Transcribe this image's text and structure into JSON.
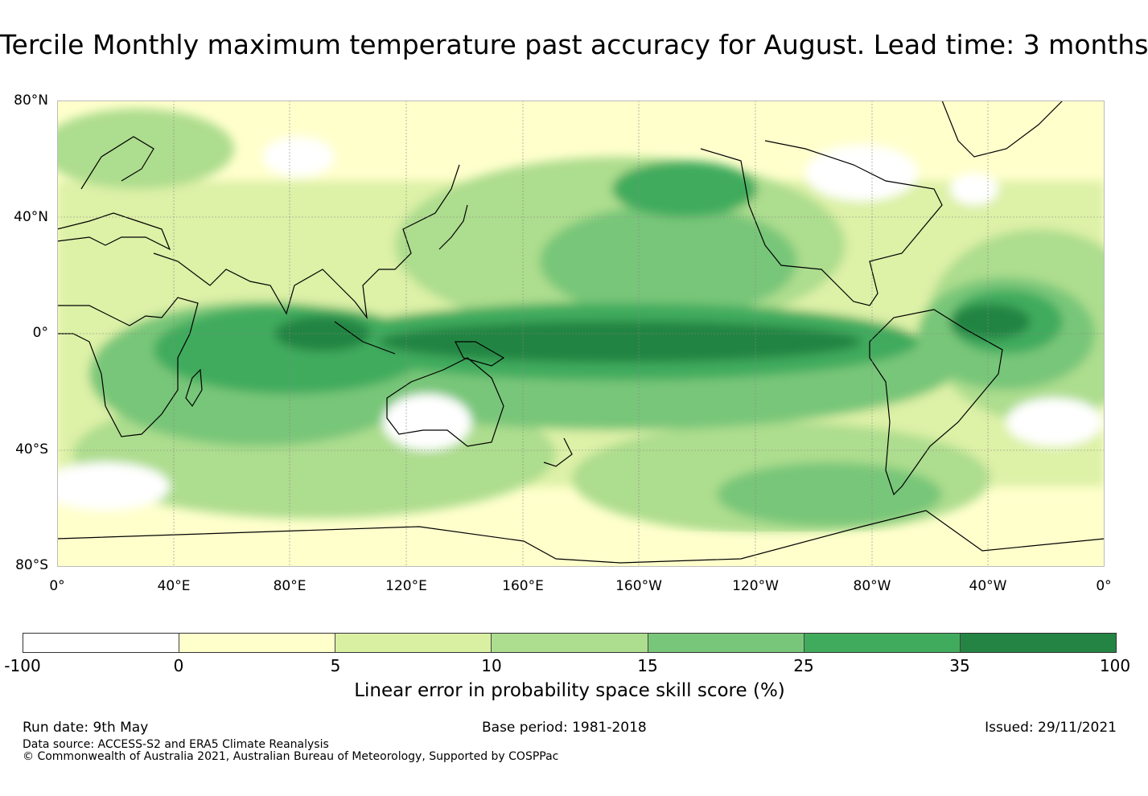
{
  "title": "Tercile Monthly maximum temperature past accuracy for August. Lead time: 3 months",
  "map": {
    "lat_labels": [
      "80°N",
      "40°N",
      "0°",
      "40°S",
      "80°S"
    ],
    "lon_labels": [
      "0°",
      "40°E",
      "80°E",
      "120°E",
      "160°E",
      "160°W",
      "120°W",
      "80°W",
      "40°W",
      "0°"
    ]
  },
  "colorbar": {
    "ticks": [
      "-100",
      "0",
      "5",
      "10",
      "15",
      "25",
      "35",
      "100"
    ],
    "colors": [
      "#ffffff",
      "#ffffcc",
      "#d9f0a3",
      "#addd8e",
      "#78c679",
      "#41ab5d",
      "#238443"
    ],
    "label": "Linear error in probability space skill score (%)"
  },
  "footer": {
    "run_date": "Run date: 9th May",
    "base_period": "Base period: 1981-2018",
    "issued": "Issued: 29/11/2021",
    "data_source": "Data source: ACCESS-S2 and ERA5 Climate Reanalysis",
    "copyright": "© Commonwealth of Australia 2021, Australian Bureau of Meteorology, Supported by COSPPac"
  }
}
